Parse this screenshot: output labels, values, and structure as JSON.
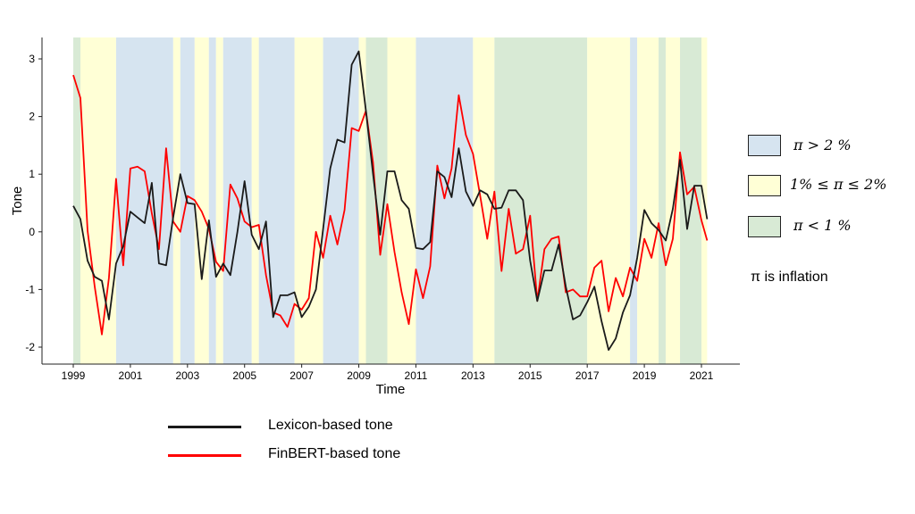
{
  "chart_data": {
    "type": "line",
    "xlabel": "Time",
    "ylabel": "Tone",
    "xlim": [
      1999.0,
      2021.2
    ],
    "ylim": [
      -2.3,
      3.35
    ],
    "x_ticks": [
      "1999",
      "2001",
      "2003",
      "2005",
      "2007",
      "2009",
      "2011",
      "2013",
      "2015",
      "2017",
      "2019",
      "2021"
    ],
    "y_ticks": [
      "3",
      "2",
      "1",
      "0",
      "-1",
      "-2"
    ],
    "regimes": [
      {
        "start": 1999.0,
        "end": 1999.25,
        "class": "low"
      },
      {
        "start": 1999.25,
        "end": 2000.5,
        "class": "mid"
      },
      {
        "start": 2000.5,
        "end": 2002.5,
        "class": "high"
      },
      {
        "start": 2002.5,
        "end": 2002.75,
        "class": "mid"
      },
      {
        "start": 2002.75,
        "end": 2003.25,
        "class": "high"
      },
      {
        "start": 2003.25,
        "end": 2003.75,
        "class": "mid"
      },
      {
        "start": 2003.75,
        "end": 2004.0,
        "class": "high"
      },
      {
        "start": 2004.0,
        "end": 2004.25,
        "class": "mid"
      },
      {
        "start": 2004.25,
        "end": 2005.25,
        "class": "high"
      },
      {
        "start": 2005.25,
        "end": 2005.5,
        "class": "mid"
      },
      {
        "start": 2005.5,
        "end": 2006.75,
        "class": "high"
      },
      {
        "start": 2006.75,
        "end": 2007.75,
        "class": "mid"
      },
      {
        "start": 2007.75,
        "end": 2009.0,
        "class": "high"
      },
      {
        "start": 2009.0,
        "end": 2009.25,
        "class": "mid"
      },
      {
        "start": 2009.25,
        "end": 2010.0,
        "class": "low"
      },
      {
        "start": 2010.0,
        "end": 2011.0,
        "class": "mid"
      },
      {
        "start": 2011.0,
        "end": 2013.0,
        "class": "high"
      },
      {
        "start": 2013.0,
        "end": 2013.75,
        "class": "mid"
      },
      {
        "start": 2013.75,
        "end": 2017.0,
        "class": "low"
      },
      {
        "start": 2017.0,
        "end": 2018.5,
        "class": "mid"
      },
      {
        "start": 2018.5,
        "end": 2018.75,
        "class": "high"
      },
      {
        "start": 2018.75,
        "end": 2019.5,
        "class": "mid"
      },
      {
        "start": 2019.5,
        "end": 2019.75,
        "class": "low"
      },
      {
        "start": 2019.75,
        "end": 2020.25,
        "class": "mid"
      },
      {
        "start": 2020.25,
        "end": 2021.0,
        "class": "low"
      },
      {
        "start": 2021.0,
        "end": 2021.2,
        "class": "mid"
      }
    ],
    "series": [
      {
        "name": "Lexicon-based tone",
        "color": "#1a1a1a",
        "x": [
          1999.0,
          1999.25,
          1999.5,
          1999.75,
          2000.0,
          2000.25,
          2000.5,
          2000.75,
          2001.0,
          2001.25,
          2001.5,
          2001.75,
          2002.0,
          2002.25,
          2002.5,
          2002.75,
          2003.0,
          2003.25,
          2003.5,
          2003.75,
          2004.0,
          2004.25,
          2004.5,
          2004.75,
          2005.0,
          2005.25,
          2005.5,
          2005.75,
          2006.0,
          2006.25,
          2006.5,
          2006.75,
          2007.0,
          2007.25,
          2007.5,
          2007.75,
          2008.0,
          2008.25,
          2008.5,
          2008.75,
          2009.0,
          2009.25,
          2009.5,
          2009.75,
          2010.0,
          2010.25,
          2010.5,
          2010.75,
          2011.0,
          2011.25,
          2011.5,
          2011.75,
          2012.0,
          2012.25,
          2012.5,
          2012.75,
          2013.0,
          2013.25,
          2013.5,
          2013.75,
          2014.0,
          2014.25,
          2014.5,
          2014.75,
          2015.0,
          2015.25,
          2015.5,
          2015.75,
          2016.0,
          2016.25,
          2016.5,
          2016.75,
          2017.0,
          2017.25,
          2017.5,
          2017.75,
          2018.0,
          2018.25,
          2018.5,
          2018.75,
          2019.0,
          2019.25,
          2019.5,
          2019.75,
          2020.0,
          2020.25,
          2020.5,
          2020.75,
          2021.0,
          2021.2
        ],
        "values": [
          0.45,
          0.22,
          -0.5,
          -0.78,
          -0.85,
          -1.52,
          -0.55,
          -0.25,
          0.35,
          0.25,
          0.15,
          0.85,
          -0.55,
          -0.58,
          0.25,
          1.0,
          0.5,
          0.48,
          -0.82,
          0.2,
          -0.78,
          -0.55,
          -0.75,
          0.0,
          0.88,
          -0.05,
          -0.3,
          0.18,
          -1.48,
          -1.1,
          -1.1,
          -1.05,
          -1.48,
          -1.3,
          -1.0,
          0.05,
          1.1,
          1.6,
          1.55,
          2.9,
          3.13,
          2.1,
          1.0,
          -0.05,
          1.05,
          1.05,
          0.55,
          0.4,
          -0.28,
          -0.3,
          -0.18,
          1.05,
          0.95,
          0.6,
          1.45,
          0.7,
          0.45,
          0.72,
          0.65,
          0.4,
          0.42,
          0.72,
          0.72,
          0.55,
          -0.5,
          -1.2,
          -0.67,
          -0.67,
          -0.22,
          -0.95,
          -1.52,
          -1.45,
          -1.22,
          -0.95,
          -1.55,
          -2.05,
          -1.85,
          -1.4,
          -1.1,
          -0.45,
          0.38,
          0.15,
          0.03,
          -0.15,
          0.4,
          1.25,
          0.05,
          0.8,
          0.8,
          0.22
        ]
      },
      {
        "name": "FinBERT-based tone",
        "color": "#ff0000",
        "x": [
          1999.0,
          1999.25,
          1999.5,
          1999.75,
          2000.0,
          2000.25,
          2000.5,
          2000.75,
          2001.0,
          2001.25,
          2001.5,
          2001.75,
          2002.0,
          2002.25,
          2002.5,
          2002.75,
          2003.0,
          2003.25,
          2003.5,
          2003.75,
          2004.0,
          2004.25,
          2004.5,
          2004.75,
          2005.0,
          2005.25,
          2005.5,
          2005.75,
          2006.0,
          2006.25,
          2006.5,
          2006.75,
          2007.0,
          2007.25,
          2007.5,
          2007.75,
          2008.0,
          2008.25,
          2008.5,
          2008.75,
          2009.0,
          2009.25,
          2009.5,
          2009.75,
          2010.0,
          2010.25,
          2010.5,
          2010.75,
          2011.0,
          2011.25,
          2011.5,
          2011.75,
          2012.0,
          2012.25,
          2012.5,
          2012.75,
          2013.0,
          2013.25,
          2013.5,
          2013.75,
          2014.0,
          2014.25,
          2014.5,
          2014.75,
          2015.0,
          2015.25,
          2015.5,
          2015.75,
          2016.0,
          2016.25,
          2016.5,
          2016.75,
          2017.0,
          2017.25,
          2017.5,
          2017.75,
          2018.0,
          2018.25,
          2018.5,
          2018.75,
          2019.0,
          2019.25,
          2019.5,
          2019.75,
          2020.0,
          2020.25,
          2020.5,
          2020.75,
          2021.0,
          2021.2
        ],
        "values": [
          2.72,
          2.32,
          0.02,
          -0.95,
          -1.78,
          -0.8,
          0.92,
          -0.58,
          1.1,
          1.13,
          1.05,
          0.32,
          -0.3,
          1.45,
          0.18,
          0.0,
          0.62,
          0.55,
          0.35,
          0.05,
          -0.52,
          -0.68,
          0.82,
          0.58,
          0.18,
          0.08,
          0.12,
          -0.75,
          -1.4,
          -1.45,
          -1.65,
          -1.25,
          -1.35,
          -1.15,
          0.0,
          -0.45,
          0.28,
          -0.22,
          0.38,
          1.8,
          1.75,
          2.1,
          1.2,
          -0.4,
          0.48,
          -0.35,
          -1.05,
          -1.6,
          -0.65,
          -1.15,
          -0.6,
          1.15,
          0.58,
          1.1,
          2.37,
          1.68,
          1.35,
          0.62,
          -0.12,
          0.7,
          -0.68,
          0.4,
          -0.38,
          -0.3,
          0.28,
          -1.2,
          -0.3,
          -0.12,
          -0.08,
          -1.05,
          -1.0,
          -1.12,
          -1.12,
          -0.62,
          -0.5,
          -1.38,
          -0.8,
          -1.12,
          -0.62,
          -0.85,
          -0.12,
          -0.45,
          0.15,
          -0.58,
          -0.12,
          1.38,
          0.65,
          0.78,
          0.2,
          -0.15
        ]
      }
    ]
  },
  "regime_colors": {
    "high": "#d6e4f0",
    "mid": "#ffffd6",
    "low": "#d8ead5"
  },
  "legend": {
    "high": "π > 2 %",
    "mid": "1% ≤ π ≤ 2%",
    "low": "π < 1 %",
    "note": "π is inflation"
  },
  "line_legend": {
    "lexicon": "Lexicon-based tone",
    "finbert": "FinBERT-based tone"
  }
}
